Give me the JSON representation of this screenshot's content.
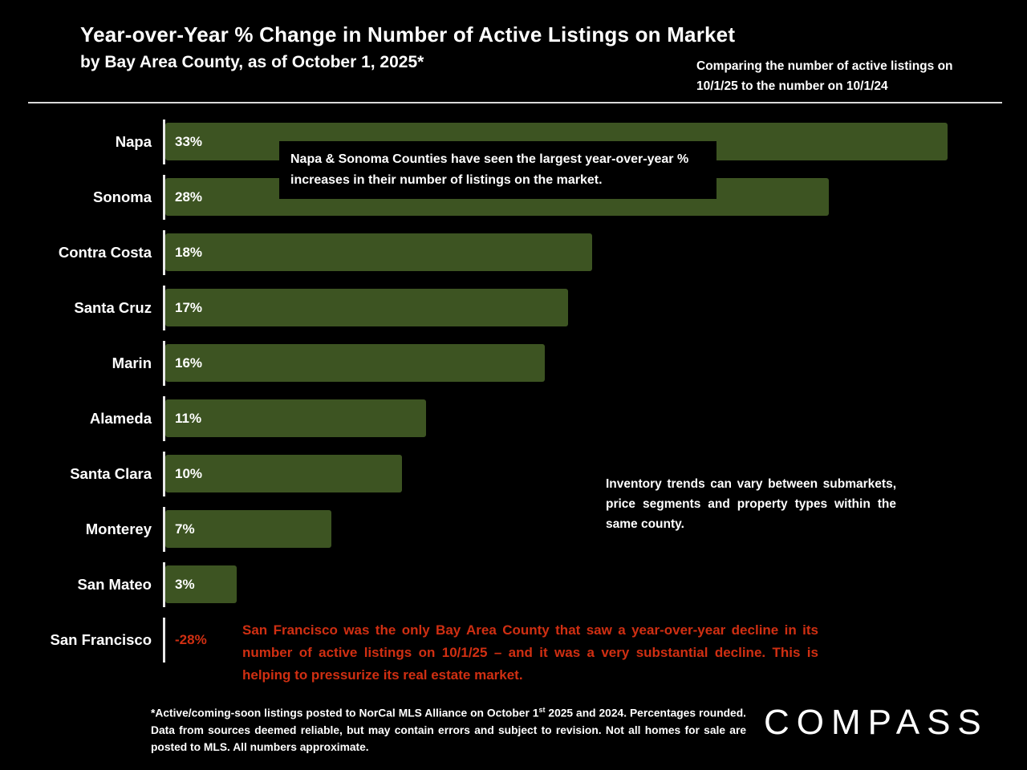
{
  "header": {
    "title": "Year-over-Year % Change in Number of Active Listings on Market",
    "subtitle": "by Bay Area County, as of October 1, 2025*",
    "note": "Comparing the number of active listings on 10/1/25 to the number on 10/1/24"
  },
  "chart_data": {
    "type": "bar",
    "orientation": "horizontal",
    "title": "Year-over-Year % Change in Number of Active Listings on Market",
    "categories": [
      "Napa",
      "Sonoma",
      "Contra Costa",
      "Santa Cruz",
      "Marin",
      "Alameda",
      "Santa Clara",
      "Monterey",
      "San Mateo",
      "San Francisco"
    ],
    "values": [
      33,
      28,
      18,
      17,
      16,
      11,
      10,
      7,
      3,
      -28
    ],
    "labels": [
      "33%",
      "28%",
      "18%",
      "17%",
      "16%",
      "11%",
      "10%",
      "7%",
      "3%",
      "-28%"
    ],
    "xlim": [
      0,
      33
    ],
    "bar_color": "#3d5422",
    "negative_label_color": "#d02f12",
    "axis_color": "#e8e8e8",
    "grid": false,
    "legend": false
  },
  "annotations": {
    "top_note": "Napa & Sonoma Counties have seen the largest year-over-year % increases in their number of listings on the market.",
    "inventory_note": "Inventory trends can vary between submarkets, price segments and property types within the same county.",
    "sf_note": "San Francisco was the only Bay Area County that saw a year-over-year decline in its number of active listings on 10/1/25 – and it was a very substantial decline. This is helping to pressurize its real estate market.",
    "sf_note_color": "#d02f12"
  },
  "footnote": {
    "pre": "*Active/coming-soon listings posted to NorCal MLS Alliance on October 1",
    "sup": "st",
    "post": " 2025 and 2024. Percentages rounded. Data from sources deemed reliable, but may contain errors and subject to revision. Not all homes for sale are posted to MLS. All numbers approximate."
  },
  "logo": {
    "text": "COMPASS"
  }
}
